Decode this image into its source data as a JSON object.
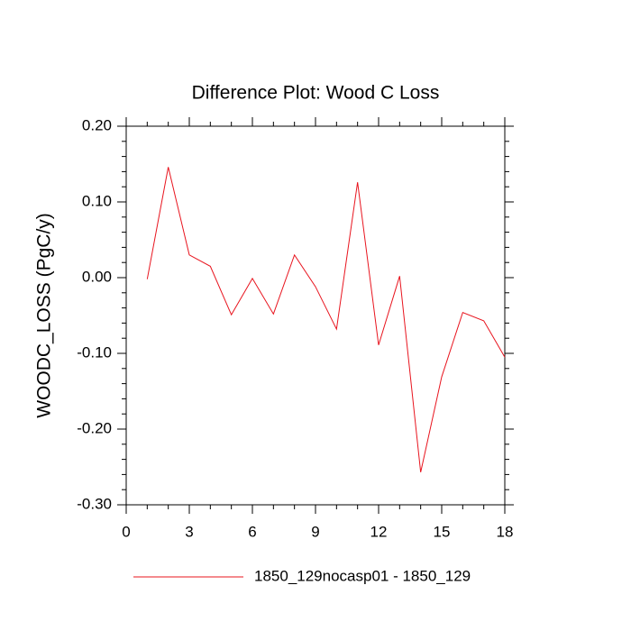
{
  "chart_data": {
    "type": "line",
    "title": "Difference Plot: Wood C Loss",
    "ylabel": "WOODC_LOSS  (PgC/y)",
    "x": [
      1,
      2,
      3,
      4,
      5,
      6,
      7,
      8,
      9,
      10,
      11,
      12,
      13,
      14,
      15,
      16,
      17,
      18
    ],
    "series": [
      {
        "name": "1850_129nocasp01 - 1850_129",
        "color": "#e8141e",
        "values": [
          -0.002,
          0.146,
          0.03,
          0.015,
          -0.049,
          -0.001,
          -0.048,
          0.03,
          -0.012,
          -0.068,
          0.126,
          -0.089,
          0.002,
          -0.257,
          -0.131,
          -0.046,
          -0.057,
          -0.105
        ]
      }
    ],
    "xlim": [
      0,
      18
    ],
    "xticks": [
      0,
      3,
      6,
      9,
      12,
      15,
      18
    ],
    "ylim": [
      -0.3,
      0.2
    ],
    "yticks": [
      {
        "value": -0.3,
        "label": "-0.30"
      },
      {
        "value": -0.2,
        "label": "-0.20"
      },
      {
        "value": -0.1,
        "label": "-0.10"
      },
      {
        "value": 0,
        "label": "0.00"
      },
      {
        "value": 0.1,
        "label": "0.10"
      },
      {
        "value": 0.2,
        "label": "0.20"
      }
    ],
    "grid": false,
    "legend": "bottom"
  }
}
